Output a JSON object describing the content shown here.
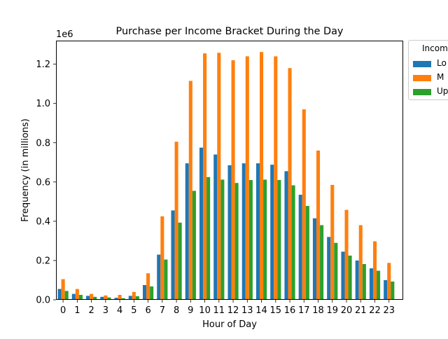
{
  "chart_data": {
    "type": "bar",
    "title": "Purchase per Income Bracket During the Day",
    "xlabel": "Hour of Day",
    "ylabel": "Frequency (in millions)",
    "y_offset_label": "1e6",
    "ylim": [
      0,
      1320000
    ],
    "yticks": [
      0,
      200000,
      400000,
      600000,
      800000,
      1000000,
      1200000
    ],
    "ytick_labels": [
      "0.0",
      "0.2",
      "0.4",
      "0.6",
      "0.8",
      "1.0",
      "1.2"
    ],
    "categories": [
      "0",
      "1",
      "2",
      "3",
      "4",
      "5",
      "6",
      "7",
      "8",
      "9",
      "10",
      "11",
      "12",
      "13",
      "14",
      "15",
      "16",
      "17",
      "18",
      "19",
      "20",
      "21",
      "22",
      "23"
    ],
    "series": [
      {
        "color": "#1f77b4",
        "values": [
          55000,
          30000,
          20000,
          15000,
          10000,
          20000,
          75000,
          230000,
          455000,
          695000,
          775000,
          740000,
          685000,
          695000,
          695000,
          688000,
          655000,
          535000,
          415000,
          320000,
          245000,
          200000,
          160000,
          100000
        ]
      },
      {
        "color": "#ff7f0e",
        "values": [
          105000,
          55000,
          30000,
          22000,
          25000,
          40000,
          135000,
          425000,
          805000,
          1115000,
          1255000,
          1258000,
          1220000,
          1240000,
          1262000,
          1240000,
          1180000,
          970000,
          760000,
          585000,
          458000,
          380000,
          298000,
          188000
        ]
      },
      {
        "color": "#2ca02c",
        "values": [
          45000,
          25000,
          15000,
          12000,
          8000,
          18000,
          68000,
          205000,
          393000,
          555000,
          625000,
          612000,
          595000,
          610000,
          612000,
          610000,
          583000,
          478000,
          380000,
          290000,
          225000,
          182000,
          148000,
          93000
        ]
      }
    ],
    "legend": {
      "title": "Incom",
      "labels": [
        "Lo",
        "M",
        "Up"
      ],
      "placement": "outside-top-right"
    },
    "grid": false
  }
}
